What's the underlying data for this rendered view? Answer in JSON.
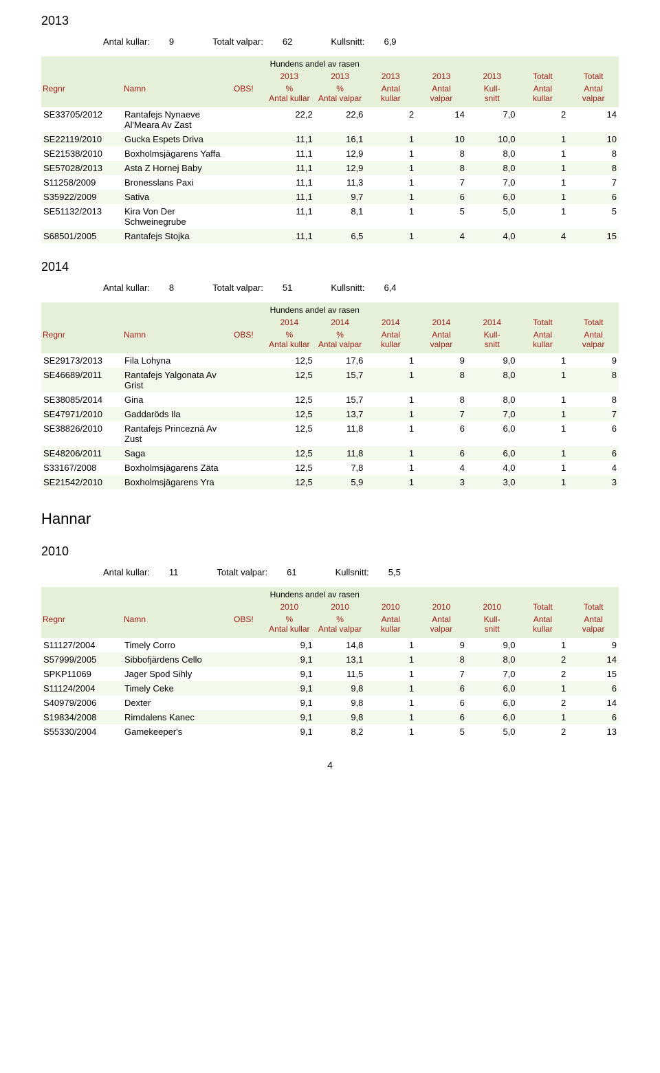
{
  "headers": {
    "superheader": "Hundens andel av rasen",
    "regnr": "Regnr",
    "namn": "Namn",
    "obs": "OBS!",
    "pctKullar": "% Antal kullar",
    "pctValpar": "% Antal valpar",
    "antalKullar": "Antal kullar",
    "antalValpar": "Antal valpar",
    "kullsnitt": "Kull- snitt",
    "totaltKullar": "Antal kullar",
    "totaltValpar": "Antal valpar",
    "totalt": "Totalt"
  },
  "summaryLabels": {
    "antalKullar": "Antal kullar:",
    "totaltValpar": "Totalt valpar:",
    "kullsnitt": "Kullsnitt:"
  },
  "sectionHannar": "Hannar",
  "pageNumber": "4",
  "tables": [
    {
      "year": "2013",
      "summary": {
        "antalKullar": "9",
        "totaltValpar": "62",
        "kullsnitt": "6,9"
      },
      "rows": [
        {
          "regnr": "SE33705/2012",
          "namn": "Rantafejs Nynaeve Al'Meara Av Zast",
          "obs": "",
          "pctK": "22,2",
          "pctV": "22,6",
          "ak": "2",
          "av": "14",
          "ks": "7,0",
          "tk": "2",
          "tv": "14"
        },
        {
          "regnr": "SE22119/2010",
          "namn": "Gucka Espets Driva",
          "obs": "",
          "pctK": "11,1",
          "pctV": "16,1",
          "ak": "1",
          "av": "10",
          "ks": "10,0",
          "tk": "1",
          "tv": "10"
        },
        {
          "regnr": "SE21538/2010",
          "namn": "Boxholmsjägarens Yaffa",
          "obs": "",
          "pctK": "11,1",
          "pctV": "12,9",
          "ak": "1",
          "av": "8",
          "ks": "8,0",
          "tk": "1",
          "tv": "8"
        },
        {
          "regnr": "SE57028/2013",
          "namn": "Asta Z Hornej Baby",
          "obs": "",
          "pctK": "11,1",
          "pctV": "12,9",
          "ak": "1",
          "av": "8",
          "ks": "8,0",
          "tk": "1",
          "tv": "8"
        },
        {
          "regnr": "S11258/2009",
          "namn": "Bronesslans Paxi",
          "obs": "",
          "pctK": "11,1",
          "pctV": "11,3",
          "ak": "1",
          "av": "7",
          "ks": "7,0",
          "tk": "1",
          "tv": "7"
        },
        {
          "regnr": "S35922/2009",
          "namn": "Sativa",
          "obs": "",
          "pctK": "11,1",
          "pctV": "9,7",
          "ak": "1",
          "av": "6",
          "ks": "6,0",
          "tk": "1",
          "tv": "6"
        },
        {
          "regnr": "SE51132/2013",
          "namn": "Kira Von Der Schweinegrube",
          "obs": "",
          "pctK": "11,1",
          "pctV": "8,1",
          "ak": "1",
          "av": "5",
          "ks": "5,0",
          "tk": "1",
          "tv": "5"
        },
        {
          "regnr": "S68501/2005",
          "namn": "Rantafejs Stojka",
          "obs": "",
          "pctK": "11,1",
          "pctV": "6,5",
          "ak": "1",
          "av": "4",
          "ks": "4,0",
          "tk": "4",
          "tv": "15"
        }
      ]
    },
    {
      "year": "2014",
      "summary": {
        "antalKullar": "8",
        "totaltValpar": "51",
        "kullsnitt": "6,4"
      },
      "rows": [
        {
          "regnr": "SE29173/2013",
          "namn": "Fila Lohyna",
          "obs": "",
          "pctK": "12,5",
          "pctV": "17,6",
          "ak": "1",
          "av": "9",
          "ks": "9,0",
          "tk": "1",
          "tv": "9"
        },
        {
          "regnr": "SE46689/2011",
          "namn": "Rantafejs Yalgonata Av Grist",
          "obs": "",
          "pctK": "12,5",
          "pctV": "15,7",
          "ak": "1",
          "av": "8",
          "ks": "8,0",
          "tk": "1",
          "tv": "8"
        },
        {
          "regnr": "SE38085/2014",
          "namn": "Gina",
          "obs": "",
          "pctK": "12,5",
          "pctV": "15,7",
          "ak": "1",
          "av": "8",
          "ks": "8,0",
          "tk": "1",
          "tv": "8"
        },
        {
          "regnr": "SE47971/2010",
          "namn": "Gaddaröds Ila",
          "obs": "",
          "pctK": "12,5",
          "pctV": "13,7",
          "ak": "1",
          "av": "7",
          "ks": "7,0",
          "tk": "1",
          "tv": "7"
        },
        {
          "regnr": "SE38826/2010",
          "namn": "Rantafejs Princezná Av Zust",
          "obs": "",
          "pctK": "12,5",
          "pctV": "11,8",
          "ak": "1",
          "av": "6",
          "ks": "6,0",
          "tk": "1",
          "tv": "6"
        },
        {
          "regnr": "SE48206/2011",
          "namn": "Saga",
          "obs": "",
          "pctK": "12,5",
          "pctV": "11,8",
          "ak": "1",
          "av": "6",
          "ks": "6,0",
          "tk": "1",
          "tv": "6"
        },
        {
          "regnr": "S33167/2008",
          "namn": "Boxholmsjägarens Zäta",
          "obs": "",
          "pctK": "12,5",
          "pctV": "7,8",
          "ak": "1",
          "av": "4",
          "ks": "4,0",
          "tk": "1",
          "tv": "4"
        },
        {
          "regnr": "SE21542/2010",
          "namn": "Boxholmsjägarens Yra",
          "obs": "",
          "pctK": "12,5",
          "pctV": "5,9",
          "ak": "1",
          "av": "3",
          "ks": "3,0",
          "tk": "1",
          "tv": "3"
        }
      ]
    },
    {
      "year": "2010",
      "sectionBefore": "Hannar",
      "summary": {
        "antalKullar": "11",
        "totaltValpar": "61",
        "kullsnitt": "5,5"
      },
      "rows": [
        {
          "regnr": "S11127/2004",
          "namn": "Timely Corro",
          "obs": "",
          "pctK": "9,1",
          "pctV": "14,8",
          "ak": "1",
          "av": "9",
          "ks": "9,0",
          "tk": "1",
          "tv": "9"
        },
        {
          "regnr": "S57999/2005",
          "namn": "Sibbofjärdens Cello",
          "obs": "",
          "pctK": "9,1",
          "pctV": "13,1",
          "ak": "1",
          "av": "8",
          "ks": "8,0",
          "tk": "2",
          "tv": "14"
        },
        {
          "regnr": "SPKP11069",
          "namn": "Jager Spod Sihly",
          "obs": "",
          "pctK": "9,1",
          "pctV": "11,5",
          "ak": "1",
          "av": "7",
          "ks": "7,0",
          "tk": "2",
          "tv": "15"
        },
        {
          "regnr": "S11124/2004",
          "namn": "Timely Ceke",
          "obs": "",
          "pctK": "9,1",
          "pctV": "9,8",
          "ak": "1",
          "av": "6",
          "ks": "6,0",
          "tk": "1",
          "tv": "6"
        },
        {
          "regnr": "S40979/2006",
          "namn": "Dexter",
          "obs": "",
          "pctK": "9,1",
          "pctV": "9,8",
          "ak": "1",
          "av": "6",
          "ks": "6,0",
          "tk": "2",
          "tv": "14"
        },
        {
          "regnr": "S19834/2008",
          "namn": "Rimdalens Kanec",
          "obs": "",
          "pctK": "9,1",
          "pctV": "9,8",
          "ak": "1",
          "av": "6",
          "ks": "6,0",
          "tk": "1",
          "tv": "6"
        },
        {
          "regnr": "S55330/2004",
          "namn": "Gamekeeper's",
          "obs": "",
          "pctK": "9,1",
          "pctV": "8,2",
          "ak": "1",
          "av": "5",
          "ks": "5,0",
          "tk": "2",
          "tv": "13"
        }
      ]
    }
  ],
  "style": {
    "headerBg": "#e6f0d8",
    "altRowBg": "#f4f9ee",
    "linkColor": "#9e1a15",
    "bodyFontSize": 13,
    "headerFontSize": 12
  }
}
